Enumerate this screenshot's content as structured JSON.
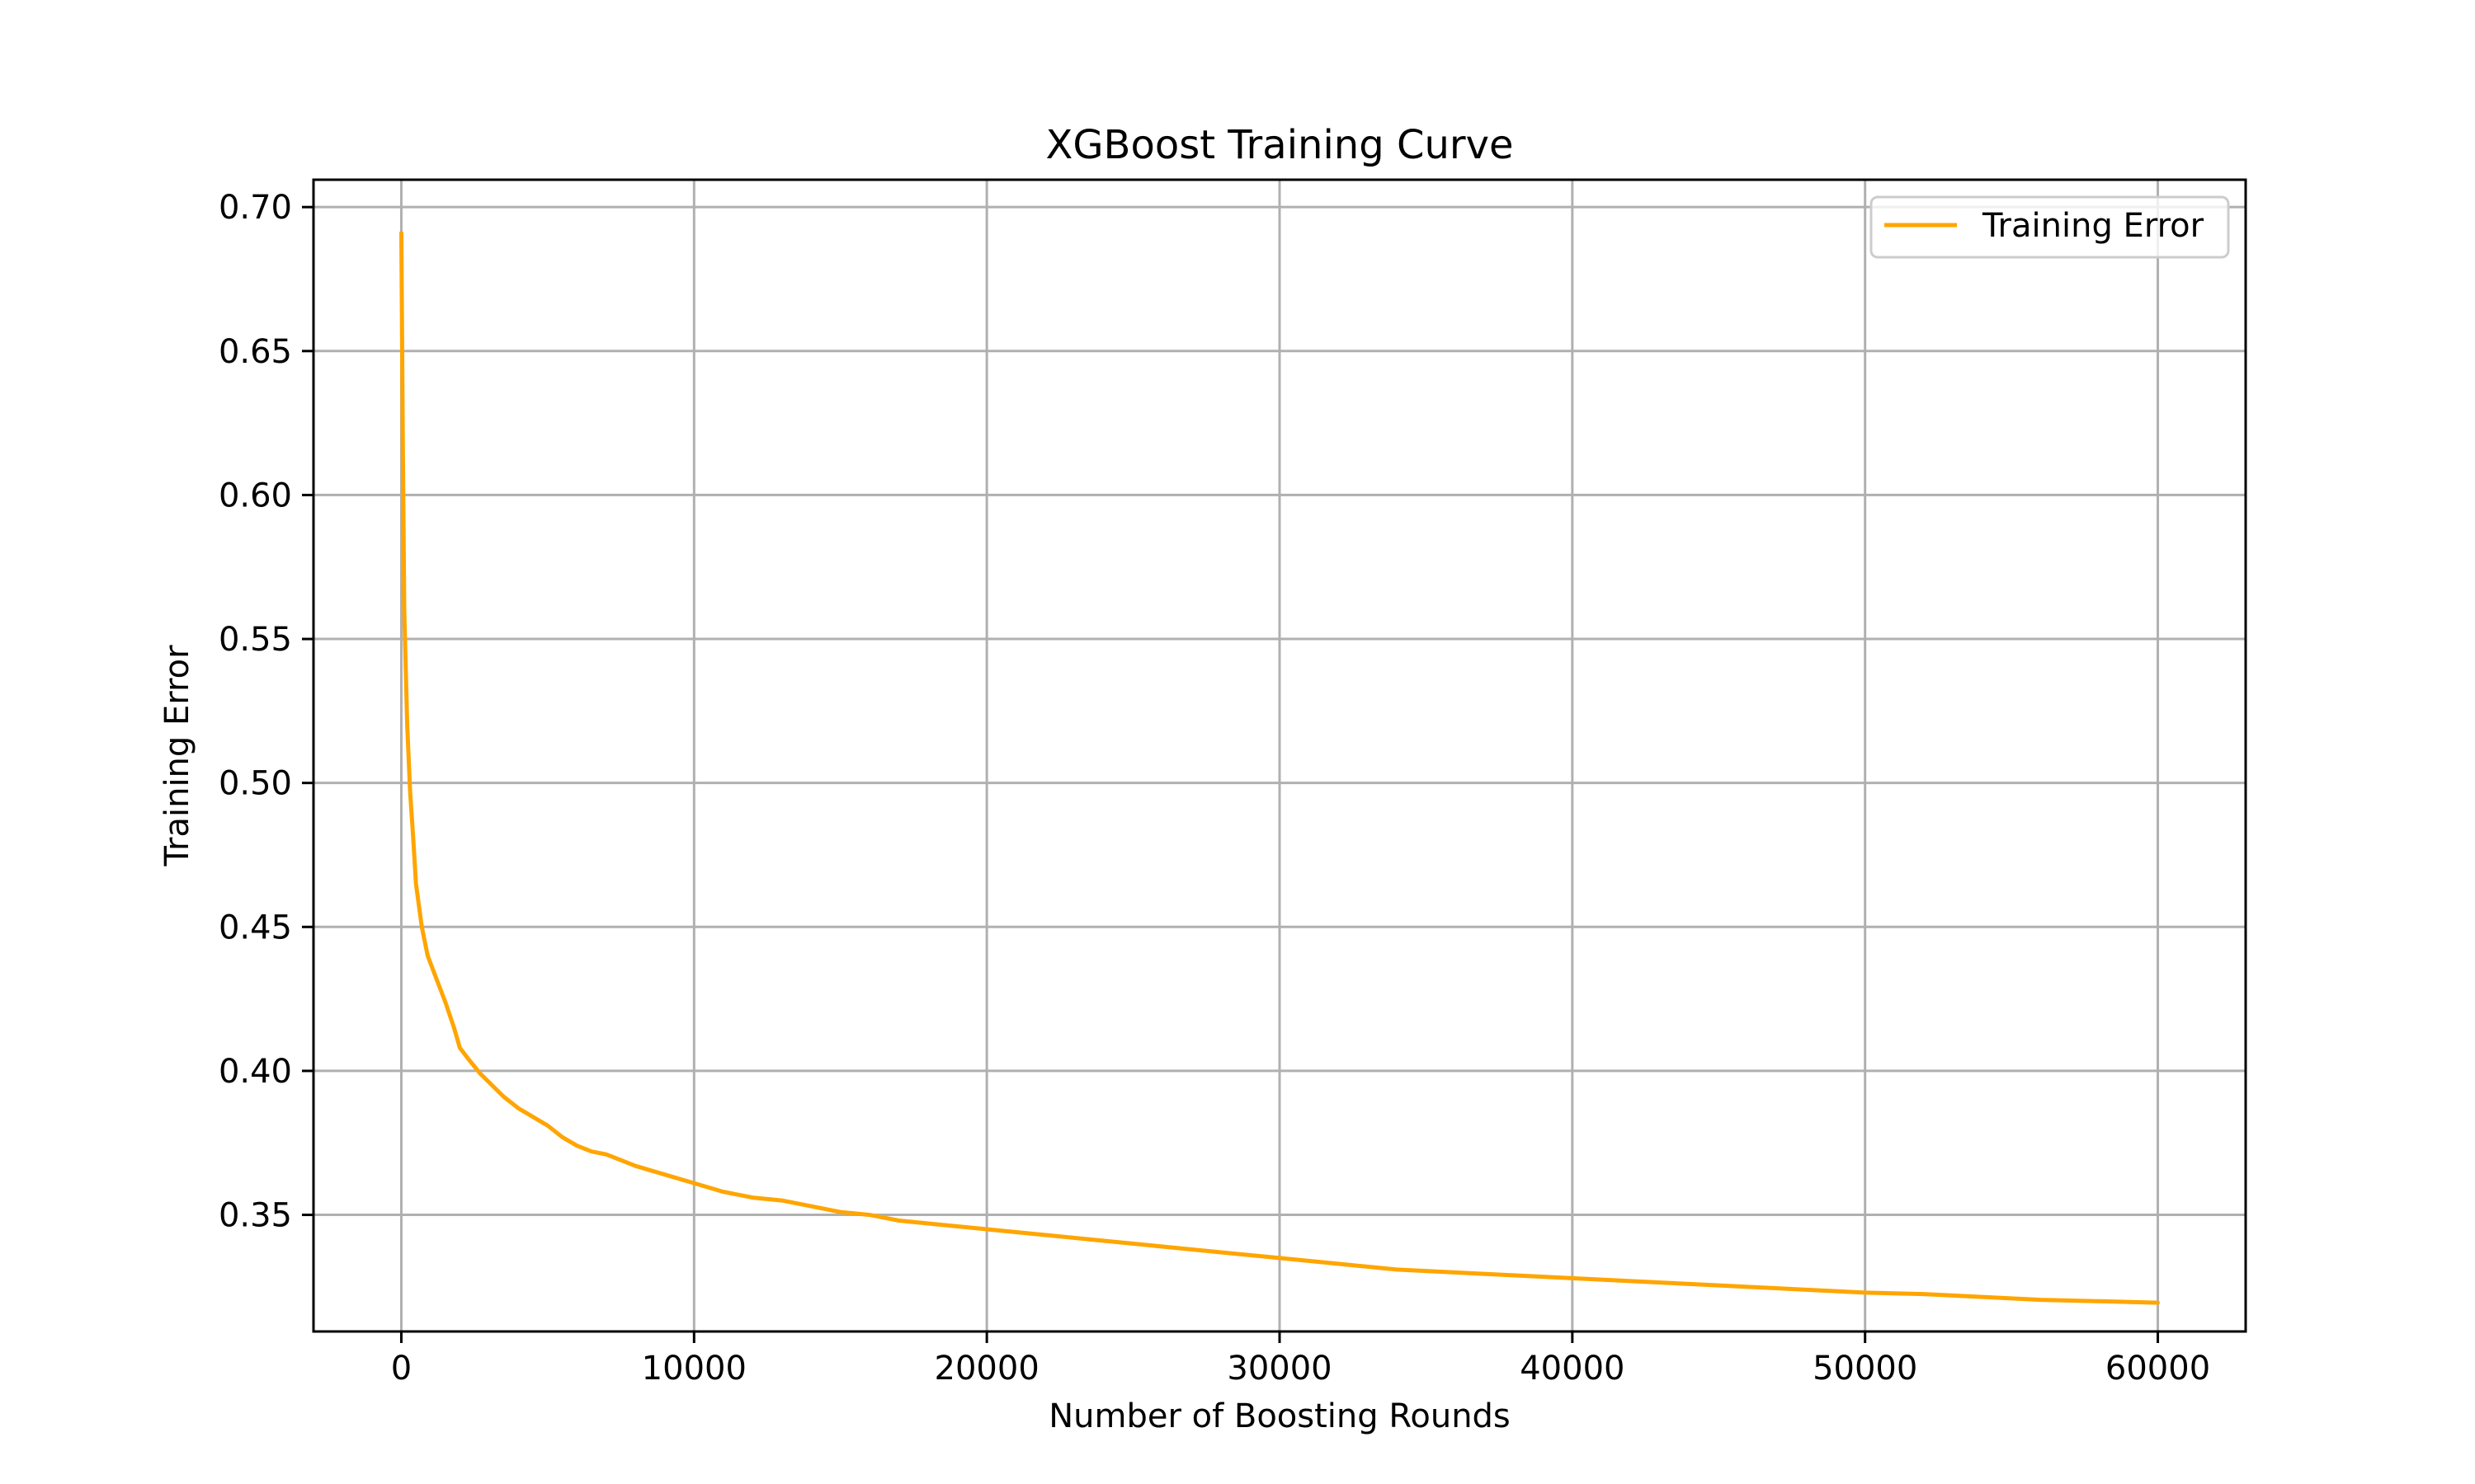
{
  "chart_data": {
    "type": "line",
    "title": "XGBoost Training Curve",
    "xlabel": "Number of Boosting Rounds",
    "ylabel": "Training Error",
    "xlim": [
      -3000,
      63000
    ],
    "ylim": [
      0.3095,
      0.7095
    ],
    "xticks": [
      0,
      10000,
      20000,
      30000,
      40000,
      50000,
      60000
    ],
    "xtick_labels": [
      "0",
      "10000",
      "20000",
      "30000",
      "40000",
      "50000",
      "60000"
    ],
    "yticks": [
      0.35,
      0.4,
      0.45,
      0.5,
      0.55,
      0.6,
      0.65,
      0.7
    ],
    "ytick_labels": [
      "0.35",
      "0.40",
      "0.45",
      "0.50",
      "0.55",
      "0.60",
      "0.65",
      "0.70"
    ],
    "grid": true,
    "legend": {
      "position": "top-right",
      "entries": [
        "Training Error"
      ]
    },
    "series": [
      {
        "name": "Training Error",
        "color": "#ffa500",
        "x": [
          0,
          50,
          100,
          200,
          300,
          400,
          500,
          700,
          900,
          1200,
          1500,
          1800,
          2000,
          2300,
          2700,
          3000,
          3500,
          4000,
          4500,
          5000,
          5500,
          6000,
          6500,
          7000,
          7500,
          8000,
          9000,
          10000,
          11000,
          12000,
          13000,
          14000,
          15000,
          16000,
          17000,
          18000,
          19000,
          20000,
          22000,
          24000,
          26000,
          28000,
          30000,
          32000,
          34000,
          36000,
          38000,
          40000,
          42000,
          44000,
          46000,
          48000,
          50000,
          52000,
          54000,
          56000,
          58000,
          60000
        ],
        "y": [
          0.691,
          0.62,
          0.56,
          0.52,
          0.497,
          0.482,
          0.465,
          0.45,
          0.44,
          0.432,
          0.424,
          0.415,
          0.408,
          0.404,
          0.399,
          0.396,
          0.391,
          0.387,
          0.384,
          0.381,
          0.377,
          0.374,
          0.372,
          0.371,
          0.369,
          0.367,
          0.364,
          0.361,
          0.358,
          0.356,
          0.355,
          0.353,
          0.351,
          0.35,
          0.348,
          0.347,
          0.346,
          0.345,
          0.343,
          0.341,
          0.339,
          0.337,
          0.335,
          0.333,
          0.331,
          0.33,
          0.329,
          0.328,
          0.327,
          0.326,
          0.325,
          0.324,
          0.323,
          0.3225,
          0.3215,
          0.3205,
          0.32,
          0.3195
        ]
      }
    ]
  }
}
